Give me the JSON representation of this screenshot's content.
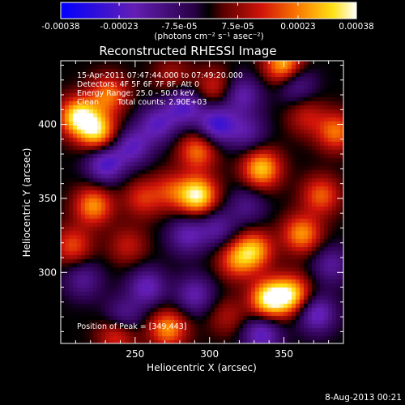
{
  "colors": {
    "background": "#000000",
    "foreground": "#ffffff"
  },
  "colorbar": {
    "tick_labels": [
      "-0.00038",
      "-0.00023",
      "-7.5e-05",
      "7.5e-05",
      "0.00023",
      "0.00038"
    ],
    "tick_values": [
      -0.00038,
      -0.00023,
      -7.5e-05,
      7.5e-05,
      0.00023,
      0.00038
    ],
    "range": [
      -0.00038,
      0.00038
    ],
    "unit_label": "(photons cm⁻² s⁻¹ asec⁻²)",
    "colormap": "blue-purple-black-red-yellow-white"
  },
  "info": {
    "time_range": "15-Apr-2011 07:47:44.000 to 07:49:20.000",
    "detectors": "Detectors: 4F 5F 6F 7F 8F, Att 0",
    "energy_range": "Energy Range: 25.0 - 50.0 keV",
    "algorithm": "Clean",
    "total_counts": "Total counts: 2.90E+03",
    "peak": "Position of Peak = [349,443]"
  },
  "footer": {
    "date": "8-Aug-2013 00:21"
  },
  "chart_data": {
    "type": "heatmap",
    "title": "Reconstructed RHESSI Image",
    "xlabel": "Heliocentric X (arcsec)",
    "ylabel": "Heliocentric Y (arcsec)",
    "xlim": [
      200,
      390
    ],
    "ylim": [
      252,
      443
    ],
    "xticks": [
      250,
      300,
      350
    ],
    "xtick_labels": [
      "250",
      "300",
      "350"
    ],
    "yticks": [
      300,
      350,
      400
    ],
    "ytick_labels": [
      "300",
      "350",
      "400"
    ],
    "sources": [
      {
        "x": 212,
        "y": 405,
        "value": 0.00036
      },
      {
        "x": 225,
        "y": 395,
        "value": 0.0003
      },
      {
        "x": 232,
        "y": 420,
        "value": 0.00022
      },
      {
        "x": 222,
        "y": 345,
        "value": 0.00025
      },
      {
        "x": 208,
        "y": 318,
        "value": 0.00018
      },
      {
        "x": 245,
        "y": 318,
        "value": 0.00012
      },
      {
        "x": 255,
        "y": 350,
        "value": 0.00015
      },
      {
        "x": 274,
        "y": 355,
        "value": 0.00015
      },
      {
        "x": 292,
        "y": 352,
        "value": 0.00036
      },
      {
        "x": 292,
        "y": 382,
        "value": 0.00022
      },
      {
        "x": 303,
        "y": 425,
        "value": 0.00014
      },
      {
        "x": 318,
        "y": 308,
        "value": 0.0002
      },
      {
        "x": 330,
        "y": 315,
        "value": 0.00026
      },
      {
        "x": 335,
        "y": 370,
        "value": 0.0003
      },
      {
        "x": 340,
        "y": 282,
        "value": 0.00036
      },
      {
        "x": 355,
        "y": 285,
        "value": 0.0003
      },
      {
        "x": 362,
        "y": 326,
        "value": 0.00025
      },
      {
        "x": 375,
        "y": 352,
        "value": 0.0002
      },
      {
        "x": 385,
        "y": 395,
        "value": 0.00022
      },
      {
        "x": 365,
        "y": 405,
        "value": 0.00012
      },
      {
        "x": 350,
        "y": 440,
        "value": 0.0003
      },
      {
        "x": 272,
        "y": 262,
        "value": 0.00025
      },
      {
        "x": 238,
        "y": 258,
        "value": 0.00018
      },
      {
        "x": 312,
        "y": 270,
        "value": 0.0001
      },
      {
        "x": 275,
        "y": 432,
        "value": 0.0001
      },
      {
        "x": 230,
        "y": 373,
        "value": -0.00024
      },
      {
        "x": 248,
        "y": 385,
        "value": -0.0002
      },
      {
        "x": 265,
        "y": 400,
        "value": -0.0002
      },
      {
        "x": 283,
        "y": 412,
        "value": -0.00022
      },
      {
        "x": 305,
        "y": 400,
        "value": -0.00026
      },
      {
        "x": 322,
        "y": 420,
        "value": -0.00018
      },
      {
        "x": 258,
        "y": 290,
        "value": -0.0002
      },
      {
        "x": 242,
        "y": 270,
        "value": -0.00016
      },
      {
        "x": 285,
        "y": 325,
        "value": -0.00018
      },
      {
        "x": 305,
        "y": 330,
        "value": -0.00015
      },
      {
        "x": 290,
        "y": 285,
        "value": -0.00018
      },
      {
        "x": 325,
        "y": 345,
        "value": -0.00012
      },
      {
        "x": 372,
        "y": 272,
        "value": -0.00022
      },
      {
        "x": 382,
        "y": 305,
        "value": -0.00015
      },
      {
        "x": 358,
        "y": 428,
        "value": -0.00016
      },
      {
        "x": 325,
        "y": 395,
        "value": -0.00015
      },
      {
        "x": 215,
        "y": 295,
        "value": -0.00014
      },
      {
        "x": 335,
        "y": 258,
        "value": -0.00022
      }
    ]
  }
}
